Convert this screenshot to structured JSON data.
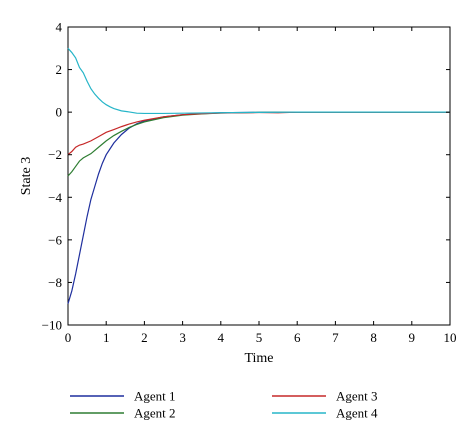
{
  "chart_data": {
    "type": "line",
    "xlabel": "Time",
    "ylabel": "State 3",
    "xlim": [
      0,
      10
    ],
    "ylim": [
      -10,
      4
    ],
    "xticks": [
      0,
      1,
      2,
      3,
      4,
      5,
      6,
      7,
      8,
      9,
      10
    ],
    "yticks": [
      -10,
      -8,
      -6,
      -4,
      -2,
      0,
      2,
      4
    ],
    "grid": false,
    "legend_position": "bottom",
    "series": [
      {
        "name": "Agent 1",
        "color": "#1f2f9e",
        "x": [
          0,
          0.1,
          0.2,
          0.3,
          0.4,
          0.5,
          0.6,
          0.7,
          0.8,
          0.9,
          1.0,
          1.2,
          1.4,
          1.6,
          1.8,
          2.0,
          2.5,
          3.0,
          3.5,
          4.0,
          5.0,
          6.0,
          7.0,
          8.0,
          9.0,
          10.0
        ],
        "y": [
          -9.0,
          -8.4,
          -7.6,
          -6.7,
          -5.8,
          -4.9,
          -4.1,
          -3.5,
          -2.9,
          -2.4,
          -2.0,
          -1.45,
          -1.05,
          -0.75,
          -0.55,
          -0.42,
          -0.22,
          -0.12,
          -0.06,
          -0.03,
          -0.01,
          0,
          0,
          0,
          0,
          0
        ]
      },
      {
        "name": "Agent 2",
        "color": "#2e7d32",
        "x": [
          0,
          0.1,
          0.2,
          0.3,
          0.4,
          0.6,
          0.8,
          1.0,
          1.2,
          1.4,
          1.6,
          1.8,
          2.0,
          2.5,
          3.0,
          3.5,
          4.0,
          5.0,
          6.0,
          7.0,
          8.0,
          9.0,
          10.0
        ],
        "y": [
          -3.0,
          -2.8,
          -2.55,
          -2.3,
          -2.15,
          -1.95,
          -1.65,
          -1.35,
          -1.1,
          -0.9,
          -0.72,
          -0.58,
          -0.46,
          -0.26,
          -0.14,
          -0.08,
          -0.04,
          -0.01,
          0,
          0,
          0,
          0,
          0
        ]
      },
      {
        "name": "Agent 3",
        "color": "#c62828",
        "x": [
          0,
          0.1,
          0.2,
          0.3,
          0.4,
          0.6,
          0.8,
          1.0,
          1.2,
          1.4,
          1.6,
          1.8,
          2.0,
          2.5,
          3.0,
          3.5,
          4.0,
          5.0,
          5.5,
          6.0,
          7.0,
          8.0,
          9.0,
          10.0
        ],
        "y": [
          -2.0,
          -1.85,
          -1.65,
          -1.55,
          -1.5,
          -1.35,
          -1.15,
          -0.95,
          -0.82,
          -0.68,
          -0.56,
          -0.46,
          -0.38,
          -0.22,
          -0.12,
          -0.07,
          -0.04,
          -0.02,
          -0.03,
          0,
          0,
          0,
          0,
          0
        ]
      },
      {
        "name": "Agent 4",
        "color": "#26b5c8",
        "x": [
          0,
          0.1,
          0.2,
          0.3,
          0.4,
          0.5,
          0.6,
          0.7,
          0.8,
          0.9,
          1.0,
          1.1,
          1.2,
          1.4,
          1.6,
          1.8,
          2.0,
          2.5,
          3.0,
          4.0,
          5.0,
          6.0,
          7.0,
          8.0,
          9.0,
          10.0
        ],
        "y": [
          3.0,
          2.8,
          2.55,
          2.1,
          1.85,
          1.45,
          1.1,
          0.85,
          0.65,
          0.48,
          0.35,
          0.25,
          0.17,
          0.06,
          0.01,
          -0.05,
          -0.06,
          -0.06,
          -0.05,
          -0.03,
          -0.01,
          0,
          0,
          0,
          0,
          0
        ]
      }
    ]
  }
}
